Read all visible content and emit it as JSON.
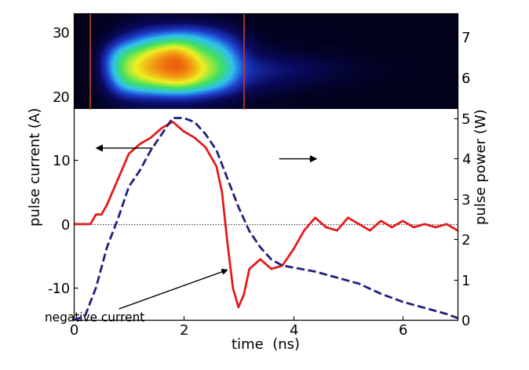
{
  "chart_data": {
    "type": "line",
    "x_label": "time  (ns)",
    "y_label": "pulse current (A)",
    "y2_label": "pulse power (W)",
    "xlim": [
      0,
      7
    ],
    "xticks": [
      0,
      2,
      4,
      6
    ],
    "ylim": [
      -15,
      33
    ],
    "yticks": [
      -10,
      0,
      10,
      20,
      30
    ],
    "y2lim": [
      0,
      7.6
    ],
    "y2ticks": [
      0,
      1,
      2,
      3,
      4,
      5,
      6,
      7
    ],
    "baseline": 0,
    "series": [
      {
        "name": "pulse current",
        "color": "#e41a1c",
        "line_style": "solid",
        "axis": "y",
        "x": [
          0,
          0.3,
          0.4,
          0.5,
          0.6,
          0.8,
          1.0,
          1.2,
          1.4,
          1.6,
          1.8,
          2.0,
          2.2,
          2.4,
          2.6,
          2.7,
          2.8,
          2.9,
          3.0,
          3.1,
          3.2,
          3.4,
          3.6,
          3.8,
          4.0,
          4.2,
          4.4,
          4.6,
          4.8,
          5.0,
          5.2,
          5.4,
          5.6,
          5.8,
          6.0,
          6.2,
          6.4,
          6.6,
          6.8,
          7.0
        ],
        "values": [
          0,
          0,
          1.5,
          1.5,
          3,
          7,
          11,
          12.5,
          13.5,
          15,
          16,
          14.5,
          13.5,
          12,
          9,
          5,
          -3,
          -10,
          -13,
          -11,
          -7,
          -5.5,
          -7,
          -6.5,
          -4,
          -1,
          1,
          -0.5,
          -1,
          1,
          0,
          -1,
          0.5,
          -0.5,
          0.5,
          -0.5,
          0,
          -0.5,
          0,
          -1
        ]
      },
      {
        "name": "pulse power",
        "color": "#1f1f7a",
        "line_style": "dashed",
        "axis": "y2",
        "x": [
          0,
          0.2,
          0.4,
          0.6,
          0.8,
          1.0,
          1.2,
          1.4,
          1.6,
          1.8,
          2.0,
          2.2,
          2.4,
          2.6,
          2.8,
          3.0,
          3.2,
          3.4,
          3.6,
          3.8,
          4.0,
          4.4,
          4.8,
          5.2,
          5.6,
          6.0,
          6.4,
          6.8,
          7.0
        ],
        "values": [
          0,
          0.1,
          0.8,
          1.8,
          2.5,
          3.3,
          3.7,
          4.2,
          4.6,
          5.0,
          5.0,
          4.9,
          4.6,
          4.2,
          3.5,
          2.8,
          2.2,
          1.8,
          1.5,
          1.35,
          1.3,
          1.2,
          1.05,
          0.9,
          0.65,
          0.45,
          0.3,
          0.15,
          0.05
        ]
      }
    ],
    "annotation": {
      "text": "negative current",
      "x": 2.85,
      "y": -7
    },
    "image": {
      "x": [
        0,
        7
      ],
      "y": [
        18,
        33
      ],
      "clim": [
        0,
        1
      ],
      "marker_x": [
        0.3,
        3.1
      ],
      "marker_color": "#c0392b",
      "cells": [
        [
          0.02,
          0.02,
          0.03,
          0.04,
          0.05,
          0.05,
          0.05,
          0.05,
          0.05,
          0.04,
          0.04,
          0.03,
          0.02,
          0.02,
          0.02,
          0.02,
          0.02,
          0.02,
          0.02,
          0.02,
          0.02,
          0.02,
          0.02,
          0.02,
          0.02,
          0.02,
          0.02,
          0.02
        ],
        [
          0.02,
          0.02,
          0.05,
          0.15,
          0.25,
          0.35,
          0.4,
          0.45,
          0.45,
          0.4,
          0.3,
          0.2,
          0.1,
          0.05,
          0.03,
          0.03,
          0.03,
          0.03,
          0.03,
          0.03,
          0.02,
          0.02,
          0.02,
          0.02,
          0.02,
          0.02,
          0.02,
          0.02
        ],
        [
          0.02,
          0.03,
          0.3,
          0.55,
          0.65,
          0.75,
          0.85,
          0.9,
          0.75,
          0.6,
          0.55,
          0.4,
          0.2,
          0.1,
          0.08,
          0.05,
          0.04,
          0.03,
          0.03,
          0.03,
          0.02,
          0.02,
          0.02,
          0.02,
          0.02,
          0.02,
          0.02,
          0.02
        ],
        [
          0.02,
          0.04,
          0.35,
          0.65,
          0.75,
          0.85,
          0.9,
          0.95,
          0.9,
          0.75,
          0.65,
          0.5,
          0.3,
          0.25,
          0.22,
          0.2,
          0.18,
          0.15,
          0.12,
          0.1,
          0.08,
          0.06,
          0.05,
          0.04,
          0.03,
          0.02,
          0.02,
          0.02
        ],
        [
          0.02,
          0.03,
          0.2,
          0.5,
          0.6,
          0.65,
          0.7,
          0.75,
          0.7,
          0.6,
          0.5,
          0.35,
          0.2,
          0.15,
          0.12,
          0.1,
          0.08,
          0.06,
          0.05,
          0.04,
          0.03,
          0.03,
          0.02,
          0.02,
          0.02,
          0.02,
          0.02,
          0.02
        ],
        [
          0.02,
          0.02,
          0.05,
          0.08,
          0.1,
          0.1,
          0.1,
          0.1,
          0.1,
          0.08,
          0.06,
          0.05,
          0.04,
          0.03,
          0.03,
          0.03,
          0.02,
          0.02,
          0.02,
          0.02,
          0.02,
          0.02,
          0.02,
          0.02,
          0.02,
          0.02,
          0.02,
          0.02
        ]
      ]
    }
  }
}
